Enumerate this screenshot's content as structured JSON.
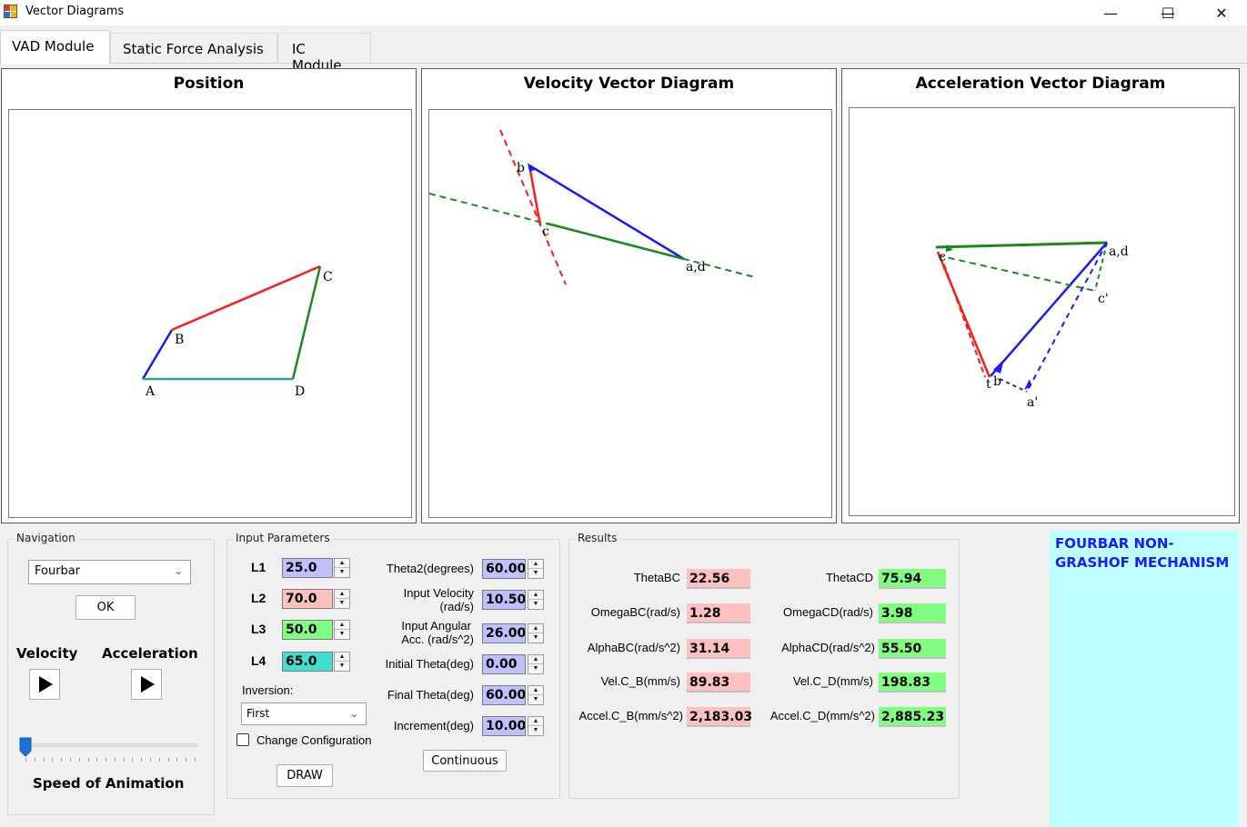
{
  "window": {
    "title": "Vector Diagrams",
    "controls": {
      "minimize": "—",
      "maximize": "☐",
      "close": "✕"
    }
  },
  "tabs": [
    {
      "label": "VAD Module",
      "active": true
    },
    {
      "label": "Static Force Analysis",
      "active": false
    },
    {
      "label": "IC Module",
      "active": false
    }
  ],
  "panels": {
    "position": {
      "title": "Position",
      "labels": {
        "A": "A",
        "B": "B",
        "C": "C",
        "D": "D"
      }
    },
    "velocity": {
      "title": "Velocity Vector Diagram",
      "labels": {
        "b": "b",
        "c": "c",
        "ad": "a,d"
      }
    },
    "acceleration": {
      "title": "Acceleration Vector Diagram",
      "labels": {
        "ad": "a,d",
        "c": "c",
        "c_prime": "c'",
        "t": "t",
        "b": "b",
        "a_prime": "a'"
      }
    }
  },
  "navigation": {
    "group_label": "Navigation",
    "mechanism_select": "Fourbar",
    "ok_label": "OK",
    "velocity_label": "Velocity",
    "acceleration_label": "Acceleration",
    "speed_label": "Speed of Animation",
    "speed_level": 0
  },
  "inputs": {
    "group_label": "Input Parameters",
    "L1": {
      "label": "L1",
      "value": "25.0"
    },
    "L2": {
      "label": "L2",
      "value": "70.0"
    },
    "L3": {
      "label": "L3",
      "value": "50.0"
    },
    "L4": {
      "label": "L4",
      "value": "65.0"
    },
    "inversion_label": "Inversion:",
    "inversion_value": "First",
    "change_config_label": "Change Configuration",
    "draw_label": "DRAW",
    "theta2": {
      "label": "Theta2(degrees)",
      "value": "60.00"
    },
    "input_velocity": {
      "label1": "Input Velocity",
      "label2": "(rad/s)",
      "value": "10.50"
    },
    "input_acc": {
      "label1": "Input Angular",
      "label2": "Acc. (rad/s^2)",
      "value": "26.00"
    },
    "initial_theta": {
      "label": "Initial Theta(deg)",
      "value": "0.00"
    },
    "final_theta": {
      "label": "Final Theta(deg)",
      "value": "60.00"
    },
    "increment": {
      "label": "Increment(deg)",
      "value": "10.00"
    },
    "continuous_label": "Continuous"
  },
  "results": {
    "group_label": "Results",
    "left": [
      {
        "label": "ThetaBC",
        "value": "22.56"
      },
      {
        "label": "OmegaBC(rad/s)",
        "value": "1.28"
      },
      {
        "label": "AlphaBC(rad/s^2)",
        "value": "31.14"
      },
      {
        "label": "Vel.C_B(mm/s)",
        "value": "89.83"
      },
      {
        "label": "Accel.C_B(mm/s^2)",
        "value": "2,183.03"
      }
    ],
    "right": [
      {
        "label": "ThetaCD",
        "value": "75.94"
      },
      {
        "label": "OmegaCD(rad/s)",
        "value": "3.98"
      },
      {
        "label": "AlphaCD(rad/s^2)",
        "value": "55.50"
      },
      {
        "label": "Vel.C_D(mm/s)",
        "value": "198.83"
      },
      {
        "label": "Accel.C_D(mm/s^2)",
        "value": "2,885.23"
      }
    ]
  },
  "mechanism_type": "FOURBAR NON-GRASHOF MECHANISM",
  "colors": {
    "link_ab": "#1a1aff",
    "link_bc": "#ff1a1a",
    "link_cd": "#1a8a1a",
    "link_ad": "#2a9d9d",
    "mech_bg": "#c0ffff"
  }
}
